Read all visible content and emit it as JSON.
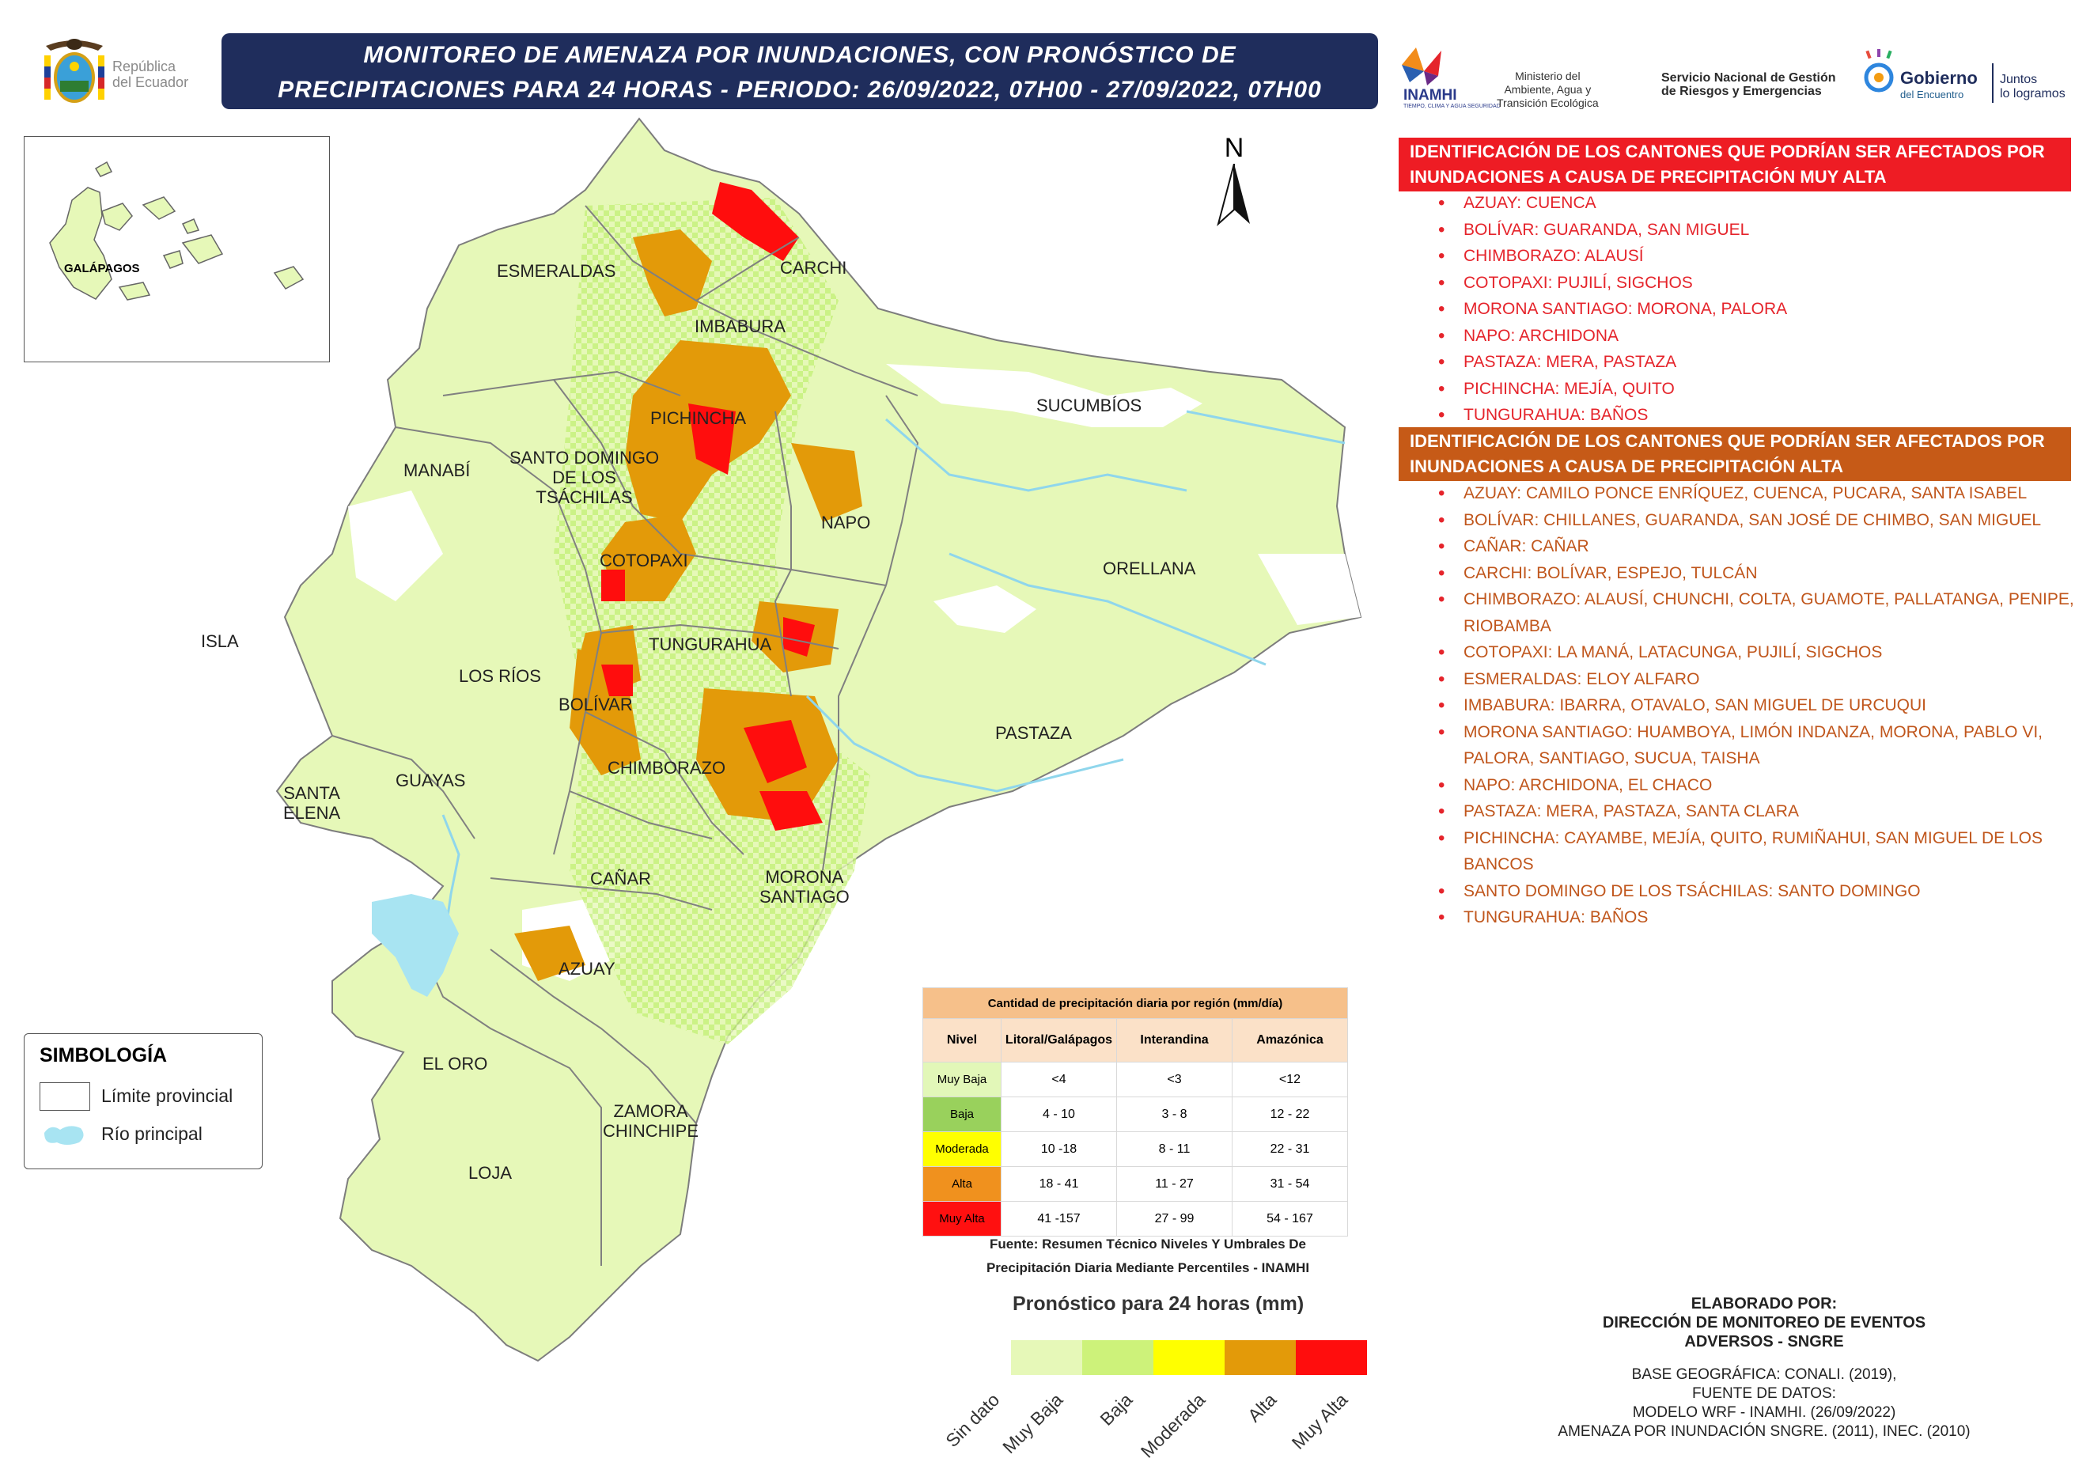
{
  "header": {
    "title_line1": "MONITOREO DE AMENAZA POR INUNDACIONES, CON PRONÓSTICO DE",
    "title_line2": "PRECIPITACIONES  PARA 24  HORAS - PERIODO: 26/09/2022, 07H00 - 27/09/2022, 07H00",
    "republica_line1": "República",
    "republica_line2": "del Ecuador"
  },
  "logos": {
    "inamhi": "INAMHI",
    "inamhi_tag": "TIEMPO, CLIMA Y AGUA SEGURIDAD",
    "ministerio": [
      "Ministerio del",
      "Ambiente, Agua y",
      "Transición Ecológica"
    ],
    "sngre": [
      "Servicio Nacional de Gestión",
      "de Riesgos y Emergencias"
    ],
    "gobierno": [
      "Gobierno",
      "del Encuentro"
    ],
    "juntos": [
      "Juntos",
      "lo logramos"
    ]
  },
  "map": {
    "north_label": "N",
    "galapagos_label": "GALÁPAGOS",
    "provinces": {
      "esmeraldas": "ESMERALDAS",
      "carchi": "CARCHI",
      "imbabura": "IMBABURA",
      "sucumbios": "SUCUMBÍOS",
      "pichincha": "PICHINCHA",
      "manabi": "MANABÍ",
      "santo_domingo": [
        "SANTO DOMINGO",
        "DE LOS",
        "TSÁCHILAS"
      ],
      "napo": "NAPO",
      "cotopaxi": "COTOPAXI",
      "orellana": "ORELLANA",
      "isla": "ISLA",
      "tungurahua": "TUNGURAHUA",
      "los_rios": "LOS RÍOS",
      "bolivar": "BOLÍVAR",
      "pastaza": "PASTAZA",
      "santa_elena": [
        "SANTA",
        "ELENA"
      ],
      "guayas": "GUAYAS",
      "chimborazo": "CHIMBORAZO",
      "canar": "CAÑAR",
      "morona": [
        "MORONA",
        "SANTIAGO"
      ],
      "azuay": "AZUAY",
      "el_oro": "EL ORO",
      "zamora": [
        "ZAMORA",
        "CHINCHIPE"
      ],
      "loja": "LOJA"
    }
  },
  "legend": {
    "title": "SIMBOLOGÍA",
    "limite": "Límite provincial",
    "rio": "Río principal"
  },
  "muy_alta": {
    "header": [
      "IDENTIFICACIÓN DE LOS CANTONES QUE PODRÍAN SER AFECTADOS POR",
      "INUNDACIONES A CAUSA DE  PRECIPITACIÓN MUY ALTA"
    ],
    "items": [
      "AZUAY: CUENCA",
      "BOLÍVAR: GUARANDA, SAN MIGUEL",
      "CHIMBORAZO: ALAUSÍ",
      "COTOPAXI: PUJILÍ, SIGCHOS",
      "MORONA SANTIAGO: MORONA, PALORA",
      "NAPO: ARCHIDONA",
      "PASTAZA: MERA, PASTAZA",
      "PICHINCHA: MEJÍA, QUITO",
      "TUNGURAHUA: BAÑOS"
    ]
  },
  "alta": {
    "header": [
      "IDENTIFICACIÓN DE LOS CANTONES QUE PODRÍAN SER AFECTADOS POR",
      "INUNDACIONES A CAUSA DE  PRECIPITACIÓN  ALTA"
    ],
    "items": [
      "AZUAY: CAMILO PONCE ENRÍQUEZ, CUENCA, PUCARA, SANTA ISABEL",
      "BOLÍVAR: CHILLANES, GUARANDA, SAN JOSÉ DE CHIMBO, SAN MIGUEL",
      "CAÑAR: CAÑAR",
      "CARCHI: BOLÍVAR, ESPEJO, TULCÁN",
      "CHIMBORAZO: ALAUSÍ, CHUNCHI, COLTA, GUAMOTE, PALLATANGA, PENIPE, RIOBAMBA",
      "COTOPAXI: LA MANÁ, LATACUNGA, PUJILÍ, SIGCHOS",
      "ESMERALDAS: ELOY ALFARO",
      "IMBABURA: IBARRA, OTAVALO, SAN MIGUEL DE URCUQUI",
      "MORONA SANTIAGO: HUAMBOYA, LIMÓN INDANZA, MORONA, PABLO VI, PALORA, SANTIAGO, SUCUA, TAISHA",
      "NAPO: ARCHIDONA, EL CHACO",
      "PASTAZA: MERA, PASTAZA, SANTA CLARA",
      "PICHINCHA: CAYAMBE, MEJÍA, QUITO, RUMIÑAHUI, SAN MIGUEL DE LOS BANCOS",
      "SANTO DOMINGO DE LOS TSÁCHILAS: SANTO DOMINGO",
      "TUNGURAHUA: BAÑOS"
    ]
  },
  "table": {
    "title": "Cantidad de precipitación diaria por región (mm/día)",
    "columns": [
      "Nivel",
      "Litoral/Galápagos",
      "Interandina",
      "Amazónica"
    ],
    "rows": [
      {
        "nivel": "Muy Baja",
        "litoral": "<4",
        "interandina": "<3",
        "amazonica": "<12"
      },
      {
        "nivel": "Baja",
        "litoral": "4 - 10",
        "interandina": "3 - 8",
        "amazonica": "12 - 22"
      },
      {
        "nivel": "Moderada",
        "litoral": "10 -18",
        "interandina": "8 - 11",
        "amazonica": "22 - 31"
      },
      {
        "nivel": "Alta",
        "litoral": "18 - 41",
        "interandina": "11 - 27",
        "amazonica": "31 - 54"
      },
      {
        "nivel": "Muy Alta",
        "litoral": "41 -157",
        "interandina": "27 - 99",
        "amazonica": "54 - 167"
      }
    ],
    "source_line1": "Fuente: Resumen Técnico Niveles Y Umbrales De",
    "source_line2": "Precipitación Diaria Mediante Percentiles - INAMHI"
  },
  "forecast_scale": {
    "title": "Pronóstico para 24 horas (mm)",
    "labels": [
      "Sin dato",
      "Muy Baja",
      "Baja",
      "Moderada",
      "Alta",
      "Muy Alta"
    ],
    "colors": [
      "#e6f8b8",
      "#cdf27a",
      "#ffff00",
      "#e39a09",
      "#ff0d0d"
    ]
  },
  "credits": {
    "elaborado": [
      "ELABORADO POR:",
      "DIRECCIÓN DE MONITOREO DE EVENTOS",
      "ADVERSOS - SNGRE"
    ],
    "fuentes": [
      "BASE GEOGRÁFICA: CONALI. (2019),",
      "FUENTE DE DATOS:",
      "MODELO WRF - INAMHI. (26/09/2022)",
      "AMENAZA POR INUNDACIÓN SNGRE. (2011), INEC. (2010)"
    ]
  },
  "colors": {
    "title_bg": "#1f2d5c",
    "muy_alta_header": "#ee1c24",
    "alta_header": "#c65a17",
    "muy_alta_text": "#e5242b",
    "alta_text": "#c0561c",
    "map_base": "#e6f8b8",
    "river": "#a8e4f2"
  }
}
